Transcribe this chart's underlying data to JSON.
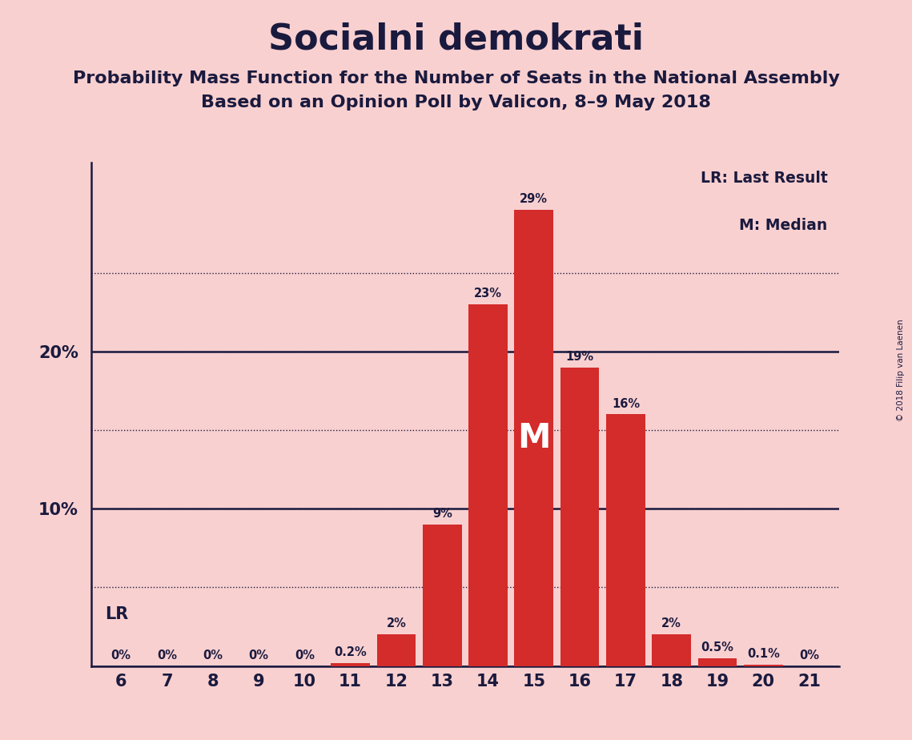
{
  "title": "Socialni demokrati",
  "subtitle1": "Probability Mass Function for the Number of Seats in the National Assembly",
  "subtitle2": "Based on an Opinion Poll by Valicon, 8–9 May 2018",
  "copyright": "© 2018 Filip van Laenen",
  "categories": [
    6,
    7,
    8,
    9,
    10,
    11,
    12,
    13,
    14,
    15,
    16,
    17,
    18,
    19,
    20,
    21
  ],
  "values": [
    0,
    0,
    0,
    0,
    0,
    0.2,
    2,
    9,
    23,
    29,
    19,
    16,
    2,
    0.5,
    0.1,
    0
  ],
  "labels": [
    "0%",
    "0%",
    "0%",
    "0%",
    "0%",
    "0.2%",
    "2%",
    "9%",
    "23%",
    "29%",
    "19%",
    "16%",
    "2%",
    "0.5%",
    "0.1%",
    "0%"
  ],
  "bar_color": "#d42b2b",
  "background_color": "#f9d0d0",
  "median_seat": 15,
  "lr_seat": 6,
  "lr_label": "LR",
  "median_label": "M",
  "grid_lines": [
    5,
    10,
    15,
    20,
    25
  ],
  "solid_lines": [
    10,
    20
  ],
  "ylim": [
    0,
    32
  ],
  "title_fontsize": 32,
  "subtitle_fontsize": 16,
  "legend_text1": "LR: Last Result",
  "legend_text2": "M: Median",
  "text_color": "#1a1a3e"
}
